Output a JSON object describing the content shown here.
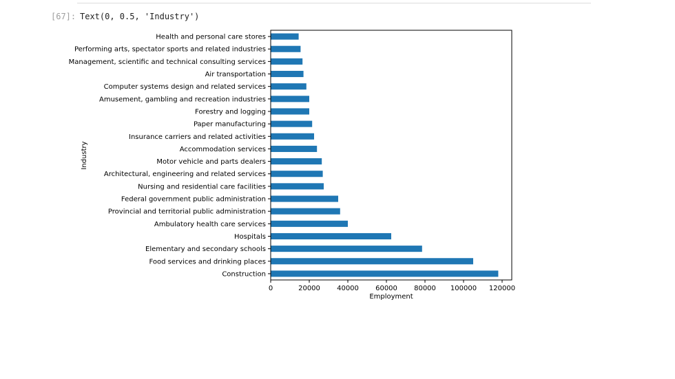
{
  "cell": {
    "prompt": "[67]:",
    "output": "Text(0, 0.5, 'Industry')"
  },
  "chart_data": {
    "type": "bar",
    "orientation": "horizontal",
    "xlabel": "Employment",
    "ylabel": "Industry",
    "xlim": [
      0,
      125000
    ],
    "xticks": [
      0,
      20000,
      40000,
      60000,
      80000,
      100000,
      120000
    ],
    "grid": false,
    "bar_color": "#1f77b4",
    "categories": [
      "Construction",
      "Food services and drinking places",
      "Elementary and secondary schools",
      "Hospitals",
      "Ambulatory health care services",
      "Provincial and territorial public administration",
      "Federal government public administration",
      "Nursing and residential care facilities",
      "Architectural, engineering and related services",
      "Motor vehicle and parts dealers",
      "Accommodation services",
      "Insurance carriers and related activities",
      "Paper manufacturing",
      "Forestry and logging",
      "Amusement, gambling and recreation industries",
      "Computer systems design and related services",
      "Air transportation",
      "Management, scientific and technical consulting services",
      "Performing arts, spectator sports and related industries",
      "Health and personal care stores"
    ],
    "values": [
      118000,
      105000,
      78500,
      62500,
      40000,
      36000,
      35000,
      27500,
      27000,
      26500,
      24000,
      22500,
      21500,
      20000,
      20000,
      18500,
      17000,
      16500,
      15500,
      14500
    ]
  }
}
